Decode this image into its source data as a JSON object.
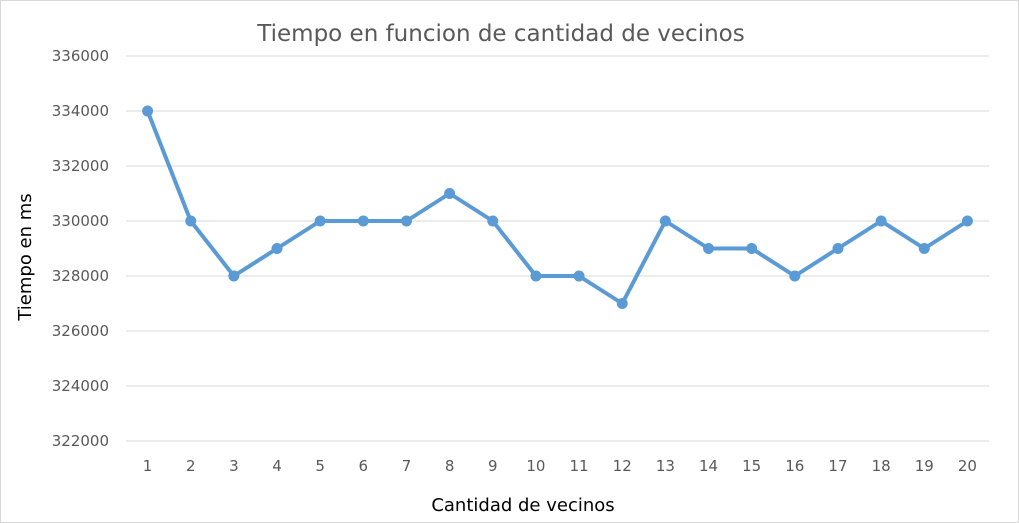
{
  "chart_data": {
    "type": "line",
    "title": "Tiempo en funcion de cantidad de vecinos",
    "xlabel": "Cantidad de vecinos",
    "ylabel": "Tiempo en ms",
    "categories": [
      "1",
      "2",
      "3",
      "4",
      "5",
      "6",
      "7",
      "8",
      "9",
      "10",
      "11",
      "12",
      "13",
      "14",
      "15",
      "16",
      "17",
      "18",
      "19",
      "20"
    ],
    "series": [
      {
        "values": [
          334000,
          330000,
          328000,
          329000,
          330000,
          330000,
          330000,
          331000,
          330000,
          328000,
          328000,
          327000,
          330000,
          329000,
          329000,
          328000,
          329000,
          330000,
          329000,
          330000
        ],
        "color": "#5b9bd5"
      }
    ],
    "ylim": [
      322000,
      336000
    ],
    "yticks": [
      "322000",
      "324000",
      "326000",
      "328000",
      "330000",
      "332000",
      "334000",
      "336000"
    ],
    "grid": true,
    "legend": "none"
  }
}
